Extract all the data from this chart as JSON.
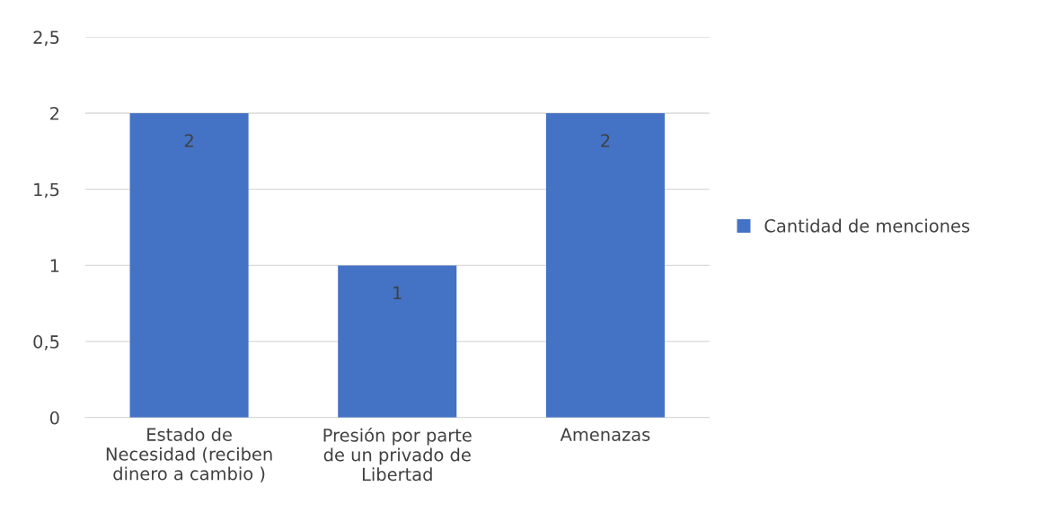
{
  "chart_data": {
    "type": "bar",
    "categories": [
      "Estado de\nNecesidad (reciben\ndinero a cambio )",
      "Presión por parte\nde un privado de\nLibertad",
      "Amenazas"
    ],
    "series": [
      {
        "name": "Cantidad de menciones",
        "color": "#4472c4",
        "values": [
          2,
          1,
          2
        ]
      }
    ],
    "ylim": [
      0,
      2.5
    ],
    "yticks": [
      {
        "value": 0,
        "label": "0"
      },
      {
        "value": 0.5,
        "label": "0,5"
      },
      {
        "value": 1,
        "label": "1"
      },
      {
        "value": 1.5,
        "label": "1,5"
      },
      {
        "value": 2,
        "label": "2"
      },
      {
        "value": 2.5,
        "label": "2,5"
      }
    ],
    "grid": "y",
    "legend": "right",
    "data_labels": true
  }
}
